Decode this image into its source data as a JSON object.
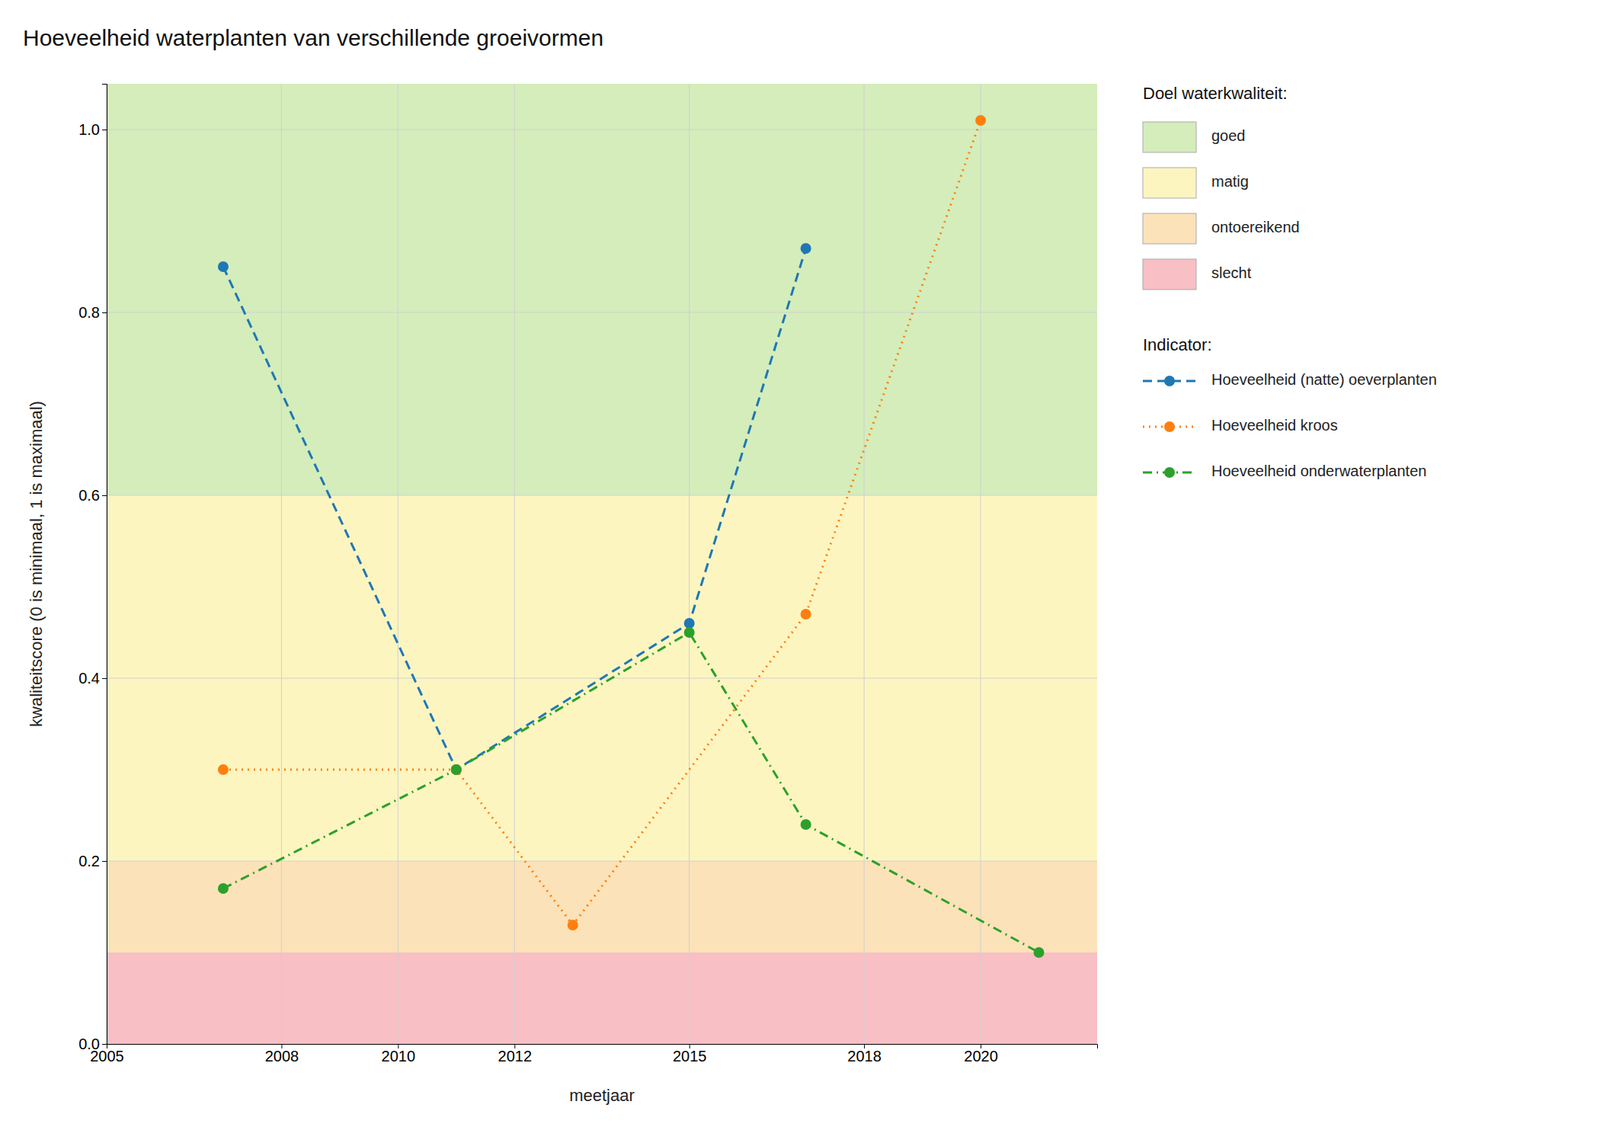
{
  "chart_data": {
    "type": "line",
    "title": "Hoeveelheid waterplanten van verschillende groeivormen",
    "x_label": "meetjaar",
    "y_label": "kwaliteitscore (0 is minimaal, 1 is maximaal)",
    "xlim": [
      2005,
      2022
    ],
    "ylim": [
      0.0,
      1.05
    ],
    "xticks": [
      2005,
      2008,
      2010,
      2012,
      2015,
      2018,
      2020
    ],
    "yticks": [
      {
        "value": 0.0,
        "label": "0.0"
      },
      0.2,
      0.4,
      0.6,
      0.8,
      {
        "value": 1.0,
        "label": "1.0"
      }
    ],
    "grid": true,
    "legend": "right",
    "bands": [
      {
        "name": "goed",
        "ymin": 0.6,
        "ymax": 1.05,
        "color": "#d4edba"
      },
      {
        "name": "matig",
        "ymin": 0.2,
        "ymax": 0.6,
        "color": "#fdf5c0"
      },
      {
        "name": "ontoereikend",
        "ymin": 0.1,
        "ymax": 0.2,
        "color": "#fce2b8"
      },
      {
        "name": "slecht",
        "ymin": 0.0,
        "ymax": 0.1,
        "color": "#f8bfc4"
      }
    ],
    "band_legend_title": "Doel waterkwaliteit:",
    "series_legend_title": "Indicator:",
    "series": [
      {
        "name": "Hoeveelheid (natte) oeverplanten",
        "x": [
          2007,
          2011,
          2015,
          2017
        ],
        "values": [
          0.85,
          0.3,
          0.46,
          0.87
        ],
        "line_style": "dashed",
        "marker": "circle"
      },
      {
        "name": "Hoeveelheid kroos",
        "x": [
          2007,
          2011,
          2013,
          2017,
          2020
        ],
        "values": [
          0.3,
          0.3,
          0.13,
          0.47,
          1.01
        ],
        "line_style": "dotted",
        "marker": "circle"
      },
      {
        "name": "Hoeveelheid onderwaterplanten",
        "x": [
          2007,
          2011,
          2015,
          2017,
          2021
        ],
        "values": [
          0.17,
          0.3,
          0.45,
          0.24,
          0.1
        ],
        "line_style": "dashdot",
        "marker": "circle"
      }
    ]
  }
}
